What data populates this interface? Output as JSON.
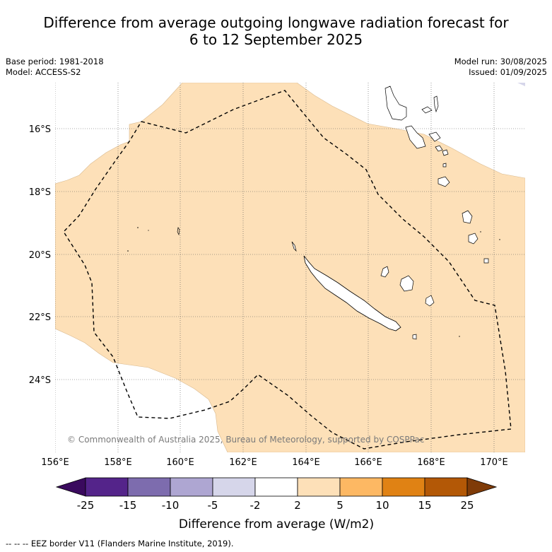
{
  "title_line1": "Difference from average outgoing longwave radiation forecast for",
  "title_line2": "6 to 12 September 2025",
  "left_meta": {
    "base_period": "Base period: 1981-2018",
    "model": "Model: ACCESS-S2"
  },
  "right_meta": {
    "model_run": "Model run: 30/08/2025",
    "issued": "Issued: 01/09/2025"
  },
  "latitude_labels": [
    "16°S",
    "18°S",
    "20°S",
    "22°S",
    "24°S"
  ],
  "longitude_labels": [
    "156°E",
    "158°E",
    "160°E",
    "162°E",
    "164°E",
    "166°E",
    "168°E",
    "170°E"
  ],
  "copyright": "© Commonwealth of Australia 2025, Bureau of Meteorology, supported by COSPPac",
  "colorbar": {
    "ticks": [
      "-25",
      "-15",
      "-10",
      "-5",
      "-2",
      "2",
      "5",
      "10",
      "15",
      "25"
    ],
    "colors": [
      "#3a0a5e",
      "#54248a",
      "#7d6cae",
      "#aea6d2",
      "#d6d6ea",
      "#ffffff",
      "#fde0b8",
      "#fdb863",
      "#e08214",
      "#b35806",
      "#7f3b08"
    ],
    "label": "Difference from average (W/m2)"
  },
  "footer": "--  --  -- EEZ border V11 (Flanders Marine Institute, 2019).",
  "colors": {
    "anomaly_fill": "#fde0b8",
    "land_stroke": "#000000"
  }
}
